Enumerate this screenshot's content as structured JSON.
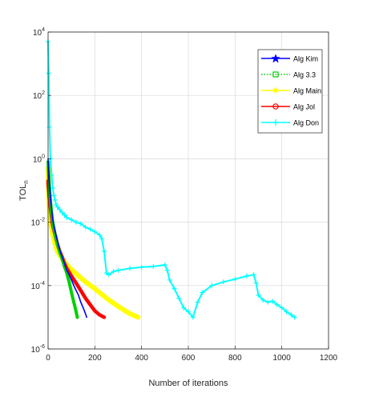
{
  "chart_data": {
    "type": "line",
    "title": "",
    "xlabel": "Number of iterations",
    "ylabel": "TOL",
    "ylabel_subscript": "n",
    "xlim": [
      0,
      1200
    ],
    "ylim": [
      1e-06,
      10000.0
    ],
    "yscale": "log",
    "grid": true,
    "legend_position": "top-right",
    "x_ticks": [
      0,
      200,
      400,
      600,
      800,
      1000,
      1200
    ],
    "y_ticks": [
      {
        "value": 1e-06,
        "base": "10",
        "exp": "-6"
      },
      {
        "value": 0.0001,
        "base": "10",
        "exp": "-4"
      },
      {
        "value": 0.01,
        "base": "10",
        "exp": "-2"
      },
      {
        "value": 1.0,
        "base": "10",
        "exp": "0"
      },
      {
        "value": 100.0,
        "base": "10",
        "exp": "2"
      },
      {
        "value": 10000.0,
        "base": "10",
        "exp": "4"
      }
    ],
    "series": [
      {
        "name": "Alg Kim",
        "color": "#0000ff",
        "line": "solid",
        "marker": "star",
        "x": [
          0,
          2,
          5,
          10,
          15,
          20,
          30,
          40,
          50,
          60,
          70,
          80,
          90,
          100,
          110,
          120,
          130,
          140,
          150,
          160,
          165
        ],
        "y": [
          1,
          0.5,
          0.2,
          0.06,
          0.025,
          0.012,
          0.005,
          0.0025,
          0.0013,
          0.0008,
          0.0005,
          0.0003,
          0.00022,
          0.00015,
          0.0001,
          7e-05,
          5e-05,
          3e-05,
          2e-05,
          1.3e-05,
          1e-05
        ]
      },
      {
        "name": "Alg 3.3",
        "color": "#00d000",
        "line": "dotted",
        "marker": "square",
        "x": [
          0,
          2,
          5,
          10,
          15,
          20,
          30,
          40,
          50,
          60,
          70,
          80,
          90,
          100,
          110,
          120,
          125
        ],
        "y": [
          0.8,
          0.4,
          0.15,
          0.05,
          0.02,
          0.01,
          0.004,
          0.002,
          0.0011,
          0.0007,
          0.0004,
          0.00025,
          0.00013,
          6e-05,
          3e-05,
          1.5e-05,
          1e-05
        ]
      },
      {
        "name": "Alg Main",
        "color": "#ffff00",
        "line": "solid",
        "marker": "asterisk",
        "x": [
          0,
          2,
          5,
          10,
          20,
          30,
          40,
          60,
          80,
          100,
          150,
          200,
          250,
          300,
          350,
          385
        ],
        "y": [
          0.5,
          0.1,
          0.03,
          0.01,
          0.004,
          0.002,
          0.0012,
          0.0007,
          0.00045,
          0.00032,
          0.00015,
          8e-05,
          4e-05,
          2.2e-05,
          1.3e-05,
          1e-05
        ]
      },
      {
        "name": "Alg Jol",
        "color": "#ff0000",
        "line": "solid",
        "marker": "circle",
        "x": [
          0,
          2,
          5,
          10,
          15,
          20,
          30,
          40,
          50,
          60,
          70,
          80,
          100,
          120,
          140,
          160,
          180,
          200,
          220,
          240
        ],
        "y": [
          0.2,
          0.12,
          0.06,
          0.03,
          0.015,
          0.008,
          0.004,
          0.002,
          0.0012,
          0.0008,
          0.0005,
          0.00035,
          0.0002,
          0.00012,
          7e-05,
          4e-05,
          2.5e-05,
          1.6e-05,
          1.2e-05,
          1e-05
        ]
      },
      {
        "name": "Alg Don",
        "color": "#00ffff",
        "line": "solid",
        "marker": "plus",
        "x": [
          0,
          3,
          6,
          10,
          15,
          20,
          25,
          30,
          35,
          40,
          50,
          60,
          70,
          80,
          100,
          120,
          140,
          160,
          180,
          200,
          220,
          230,
          240,
          250,
          260,
          280,
          300,
          350,
          400,
          450,
          500,
          510,
          520,
          540,
          560,
          580,
          600,
          620,
          640,
          660,
          700,
          750,
          800,
          850,
          880,
          890,
          900,
          920,
          940,
          960,
          980,
          1000,
          1020,
          1040,
          1055
        ],
        "y": [
          5000,
          500,
          10,
          1,
          0.3,
          0.12,
          0.07,
          0.05,
          0.035,
          0.03,
          0.025,
          0.02,
          0.017,
          0.014,
          0.012,
          0.01,
          0.009,
          0.007,
          0.006,
          0.005,
          0.004,
          0.003,
          0.0012,
          0.00025,
          0.00022,
          0.00028,
          0.0003,
          0.00035,
          0.00038,
          0.0004,
          0.00045,
          0.0003,
          0.00015,
          8e-05,
          4e-05,
          2e-05,
          1.5e-05,
          1e-05,
          3e-05,
          6e-05,
          0.0001,
          0.00013,
          0.00016,
          0.0002,
          0.00022,
          0.00012,
          5e-05,
          3.5e-05,
          3e-05,
          3.2e-05,
          2.5e-05,
          2e-05,
          1.5e-05,
          1.2e-05,
          1e-05
        ]
      }
    ]
  }
}
